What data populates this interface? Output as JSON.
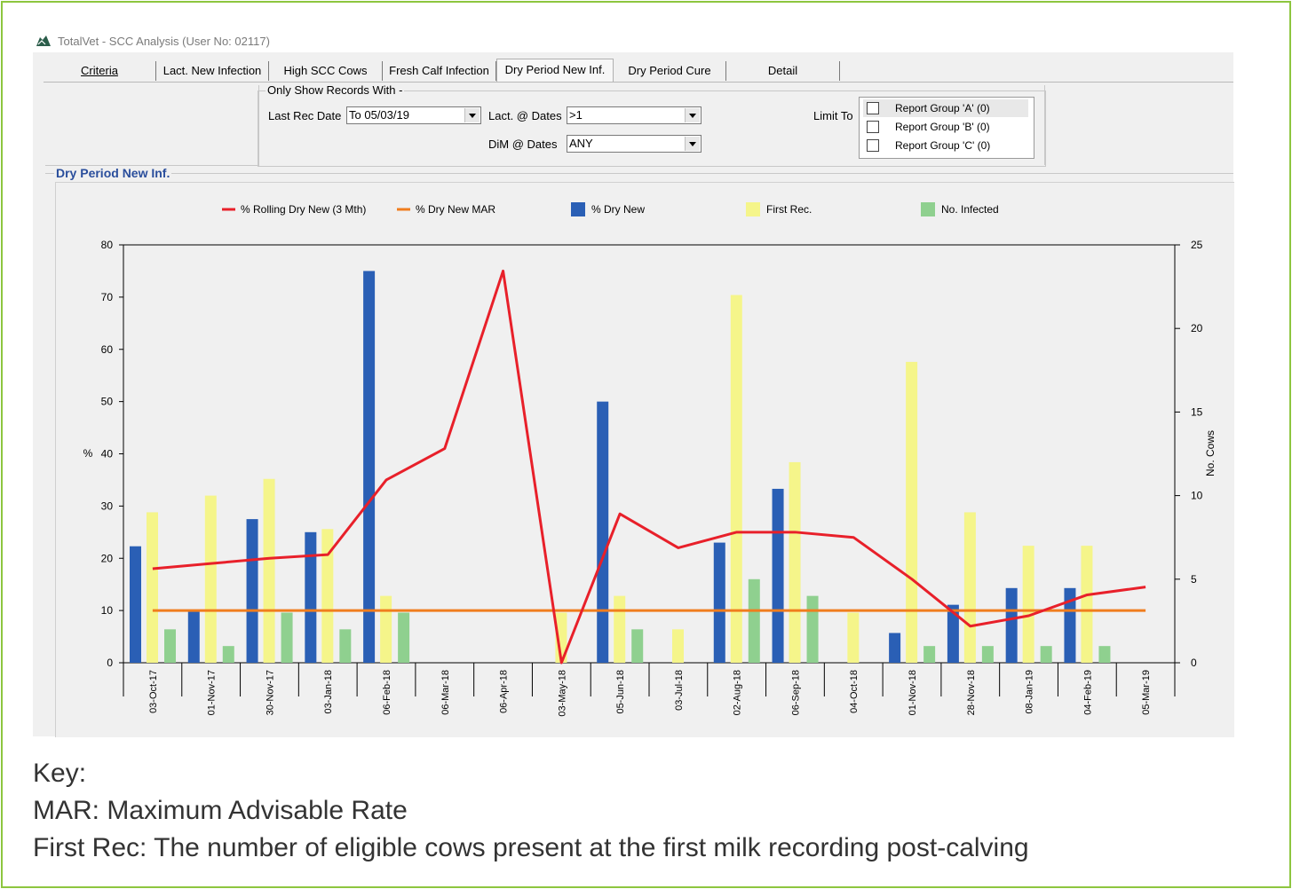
{
  "window": {
    "title": "TotalVet - SCC Analysis (User No: 02117)"
  },
  "tabs": [
    {
      "label": "Criteria"
    },
    {
      "label": "Lact. New Infection"
    },
    {
      "label": "High SCC Cows"
    },
    {
      "label": "Fresh Calf Infection"
    },
    {
      "label": "Dry Period New Inf."
    },
    {
      "label": "Dry Period Cure"
    },
    {
      "label": "Detail"
    }
  ],
  "filters": {
    "legend": "Only Show Records With -",
    "last_rec_date_label": "Last Rec Date",
    "last_rec_date_value": "To 05/03/19",
    "lact_dates_label": "Lact. @ Dates",
    "lact_dates_value": ">1",
    "dim_dates_label": "DiM @ Dates",
    "dim_dates_value": "ANY",
    "limit_to_label": "Limit To",
    "report_groups": [
      "Report Group 'A' (0)",
      "Report Group 'B' (0)",
      "Report Group 'C' (0)"
    ]
  },
  "section_title": "Dry Period New Inf.",
  "colors": {
    "rolling": "#e8202a",
    "mar": "#f07d1e",
    "dry_new": "#2a5fb5",
    "first_rec": "#f5f58a",
    "infected": "#8fd08f",
    "frame": "#8dc63f"
  },
  "chart_data": {
    "type": "bar",
    "categories": [
      "03-Oct-17",
      "01-Nov-17",
      "30-Nov-17",
      "03-Jan-18",
      "06-Feb-18",
      "06-Mar-18",
      "06-Apr-18",
      "03-May-18",
      "05-Jun-18",
      "03-Jul-18",
      "02-Aug-18",
      "06-Sep-18",
      "04-Oct-18",
      "01-Nov-18",
      "28-Nov-18",
      "08-Jan-19",
      "04-Feb-19",
      "05-Mar-19"
    ],
    "y_left": {
      "label": "%",
      "min": 0,
      "max": 80,
      "ticks": [
        0,
        10,
        20,
        30,
        40,
        50,
        60,
        70,
        80
      ]
    },
    "y_right": {
      "label": "No. Cows",
      "min": 0,
      "max": 25,
      "ticks": [
        0,
        5,
        10,
        15,
        20,
        25
      ]
    },
    "series": [
      {
        "name": "% Dry New",
        "type": "bar",
        "axis": "left",
        "values": [
          22.3,
          10,
          27.5,
          25,
          75,
          0,
          0,
          0,
          50,
          0,
          23,
          33.3,
          0,
          5.7,
          11.1,
          14.3,
          14.3,
          0
        ]
      },
      {
        "name": "First Rec.",
        "type": "bar",
        "axis": "right",
        "values": [
          9,
          10,
          11,
          8,
          4,
          0,
          0,
          3,
          4,
          2,
          22,
          12,
          3,
          18,
          9,
          7,
          7,
          0
        ]
      },
      {
        "name": "No. Infected",
        "type": "bar",
        "axis": "right",
        "values": [
          2,
          1,
          3,
          2,
          3,
          0,
          0,
          0,
          2,
          0,
          5,
          4,
          0,
          1,
          1,
          1,
          1,
          0
        ]
      },
      {
        "name": "% Rolling Dry New (3 Mth)",
        "type": "line",
        "axis": "left",
        "values": [
          18,
          19,
          20,
          20.7,
          35,
          41,
          75,
          0,
          28.5,
          22,
          25,
          25,
          24,
          16,
          7,
          9,
          13,
          14.5
        ]
      },
      {
        "name": "% Dry New MAR",
        "type": "line",
        "axis": "left",
        "values": [
          10,
          10,
          10,
          10,
          10,
          10,
          10,
          10,
          10,
          10,
          10,
          10,
          10,
          10,
          10,
          10,
          10,
          10
        ]
      }
    ],
    "legend_position": "top",
    "grid": false
  },
  "key": {
    "heading": "Key:",
    "line1": "MAR: Maximum Advisable Rate",
    "line2": "First Rec: The number of eligible cows present at the first milk recording post-calving"
  }
}
